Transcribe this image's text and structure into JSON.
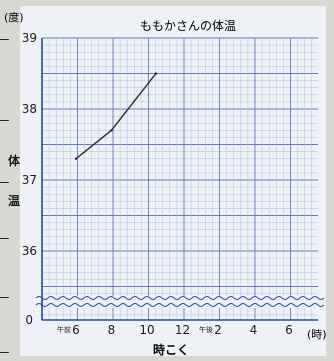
{
  "chart_data": {
    "type": "line",
    "title": "ももかさんの体温",
    "ylabel_unit": "(度)",
    "ylabel": "体温",
    "xlabel": "時こく",
    "xlabel_unit": "(時)",
    "y_ticks": [
      "39",
      "38",
      "37",
      "36"
    ],
    "y_zero": "0",
    "ylim": [
      35,
      39
    ],
    "x_ticks": [
      {
        "prefix": "午前",
        "label": "6",
        "hour": 6
      },
      {
        "prefix": "",
        "label": "8",
        "hour": 8
      },
      {
        "prefix": "",
        "label": "10",
        "hour": 10
      },
      {
        "prefix": "",
        "label": "12",
        "hour": 12
      },
      {
        "prefix": "午後",
        "label": "2",
        "hour": 14
      },
      {
        "prefix": "",
        "label": "4",
        "hour": 16
      },
      {
        "prefix": "",
        "label": "6",
        "hour": 18
      }
    ],
    "xlim": [
      4,
      19
    ],
    "axis_break": true,
    "grid": true,
    "series": [
      {
        "x": [
          6,
          8,
          10.5
        ],
        "y": [
          37.3,
          37.7,
          38.5
        ]
      }
    ]
  },
  "colors": {
    "paper": "#eef1f5",
    "grid_minor": "#a9c2e4",
    "grid_major": "#5a7fbb",
    "axis": "#1f4ea0",
    "text": "#1b1b1b",
    "line": "#2b2b2b"
  }
}
